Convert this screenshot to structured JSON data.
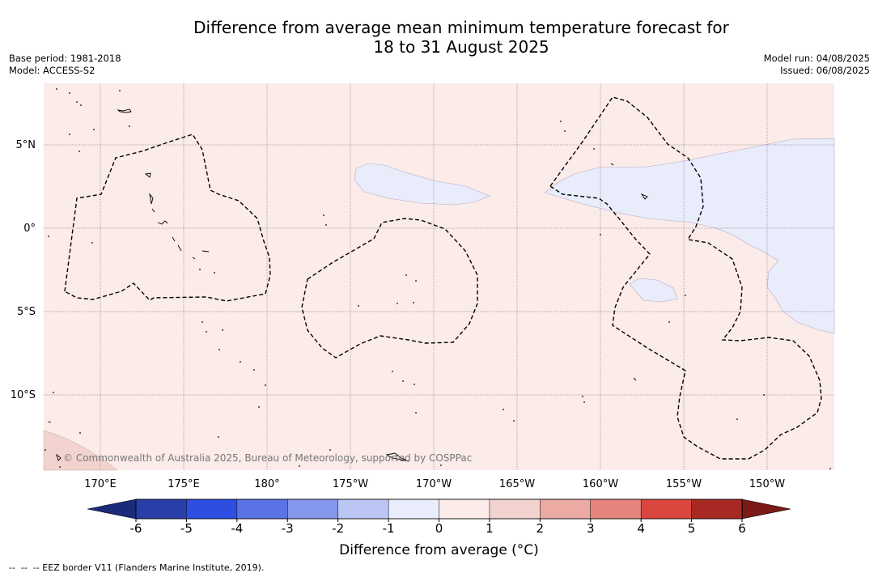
{
  "title": {
    "line1": "Difference from average mean minimum temperature forecast for",
    "line2": "18 to 31 August 2025"
  },
  "meta_left": {
    "base_period": "Base period: 1981-2018",
    "model": "Model: ACCESS-S2"
  },
  "meta_right": {
    "model_run": "Model run: 04/08/2025",
    "issued": "Issued: 06/08/2025"
  },
  "map": {
    "lat_labels": [
      "5°N",
      "0°",
      "5°S",
      "10°S"
    ],
    "lon_labels": [
      "170°E",
      "175°E",
      "180°",
      "175°W",
      "170°W",
      "165°W",
      "160°W",
      "155°W",
      "150°W"
    ],
    "copyright": "© Commonwealth of Australia 2025, Bureau of Meteorology, supported by COSPPac",
    "colors": {
      "background_anomaly_0_1": "#fbebe9",
      "anomaly_neg1_0": "#e9ecfb",
      "anomaly_1_2": "#f2d3cf",
      "gridline": "#555555",
      "eez_border": "#000000"
    }
  },
  "colorbar": {
    "ticks": [
      "-6",
      "-5",
      "-4",
      "-3",
      "-2",
      "-1",
      "0",
      "1",
      "2",
      "3",
      "4",
      "5",
      "6"
    ],
    "colors": [
      "#283ea8",
      "#2d4ee0",
      "#5a73e4",
      "#8497ec",
      "#bcc6f5",
      "#e9ecfb",
      "#fbebe9",
      "#f2d3cf",
      "#ebaaa4",
      "#e4847c",
      "#d9473e",
      "#a82823"
    ],
    "under_color": "#1c2a7a",
    "over_color": "#7b1a16",
    "label": "Difference from average (°C)"
  },
  "footnote": "--  --  -- EEZ border V11 (Flanders Marine Institute, 2019)."
}
